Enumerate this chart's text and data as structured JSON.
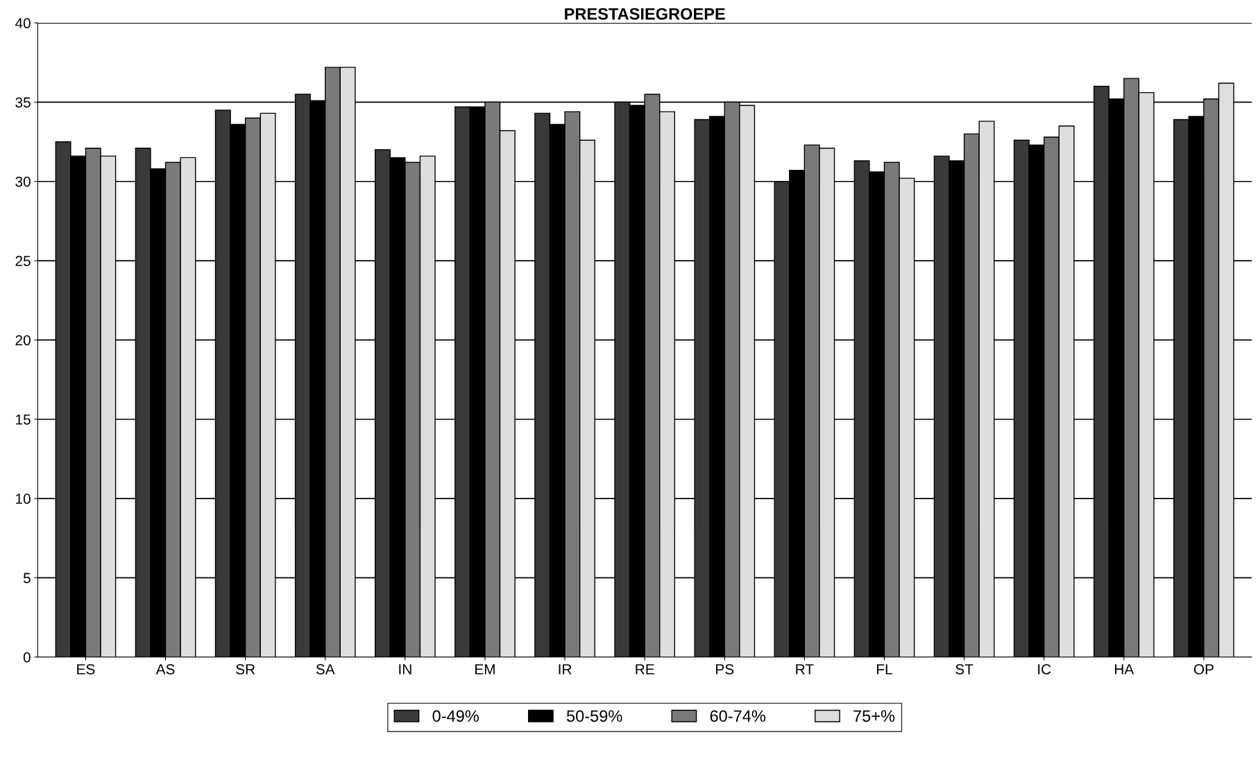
{
  "chart_data": {
    "type": "bar",
    "title": "PRESTASIEGROEPE",
    "categories": [
      "ES",
      "AS",
      "SR",
      "SA",
      "IN",
      "EM",
      "IR",
      "RE",
      "PS",
      "RT",
      "FL",
      "ST",
      "IC",
      "HA",
      "OP"
    ],
    "series": [
      {
        "name": "0-49%",
        "color": "#3a3a3a",
        "values": [
          32.5,
          32.1,
          34.5,
          35.5,
          32.0,
          34.7,
          34.3,
          35.0,
          33.9,
          30.0,
          31.3,
          31.6,
          32.6,
          36.0,
          33.9
        ]
      },
      {
        "name": "50-59%",
        "color": "#000000",
        "values": [
          31.6,
          30.8,
          33.6,
          35.1,
          31.5,
          34.7,
          33.6,
          34.8,
          34.1,
          30.7,
          30.6,
          31.3,
          32.3,
          35.2,
          34.1
        ]
      },
      {
        "name": "60-74%",
        "color": "#7a7a7a",
        "values": [
          32.1,
          31.2,
          34.0,
          37.2,
          31.2,
          35.0,
          34.4,
          35.5,
          35.0,
          32.3,
          31.2,
          33.0,
          32.8,
          36.5,
          35.2
        ]
      },
      {
        "name": "75+%",
        "color": "#dedede",
        "values": [
          31.6,
          31.5,
          34.3,
          37.2,
          31.6,
          33.2,
          32.6,
          34.4,
          34.8,
          32.1,
          30.2,
          33.8,
          33.5,
          35.6,
          36.2
        ]
      }
    ],
    "ylim": [
      0,
      40
    ],
    "yticks": [
      0,
      5,
      10,
      15,
      20,
      25,
      30,
      35,
      40
    ],
    "grid": "y",
    "legend": "bottom"
  }
}
